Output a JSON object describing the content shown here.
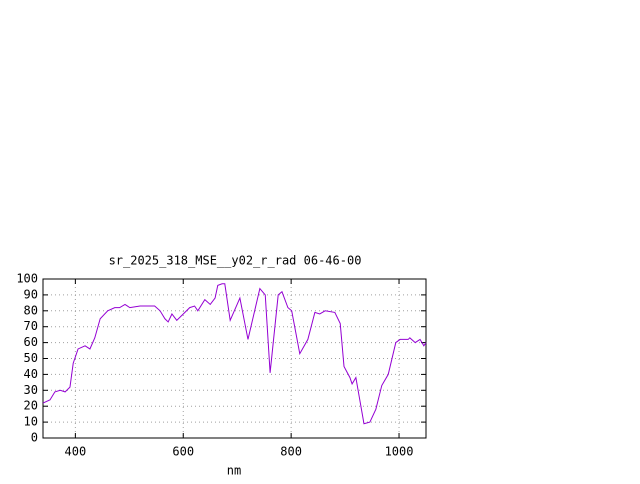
{
  "chart_data": {
    "type": "line",
    "title": "sr_2025_318_MSE__y02_r_rad 06-46-00",
    "x_label": "nm",
    "xlim": [
      340,
      1050
    ],
    "xticks": [
      400,
      600,
      800,
      1000
    ],
    "ylim": [
      0,
      100
    ],
    "yticks": [
      0,
      10,
      20,
      30,
      40,
      50,
      60,
      70,
      80,
      90,
      100
    ],
    "grid": true,
    "series": [
      {
        "color": "#9400d3",
        "x": [
          340,
          353,
          362,
          372,
          381,
          390,
          396,
          405,
          418,
          427,
          436,
          446,
          460,
          473,
          482,
          492,
          501,
          520,
          538,
          547,
          557,
          566,
          572,
          579,
          588,
          600,
          612,
          621,
          627,
          640,
          650,
          659,
          664,
          672,
          677,
          687,
          705,
          720,
          742,
          752,
          761,
          776,
          783,
          794,
          801,
          816,
          831,
          844,
          853,
          863,
          881,
          891,
          898,
          909,
          913,
          920,
          935,
          946,
          957,
          968,
          980,
          994,
          1002,
          1017,
          1020,
          1030,
          1039,
          1046,
          1050
        ],
        "values": [
          22,
          24,
          29,
          30,
          29,
          32,
          47,
          56,
          58,
          56,
          63,
          75,
          80,
          82,
          82,
          84,
          82,
          83,
          83,
          83,
          80,
          75,
          73,
          78,
          74,
          78,
          82,
          83,
          80,
          87,
          84,
          88,
          96,
          97,
          97,
          74,
          88,
          62,
          94,
          90,
          41,
          90,
          92,
          82,
          80,
          53,
          62,
          79,
          78,
          80,
          79,
          72,
          45,
          38,
          34,
          38,
          9,
          10,
          18,
          33,
          40,
          60,
          62,
          62,
          63,
          60,
          62,
          58,
          60
        ]
      }
    ]
  }
}
